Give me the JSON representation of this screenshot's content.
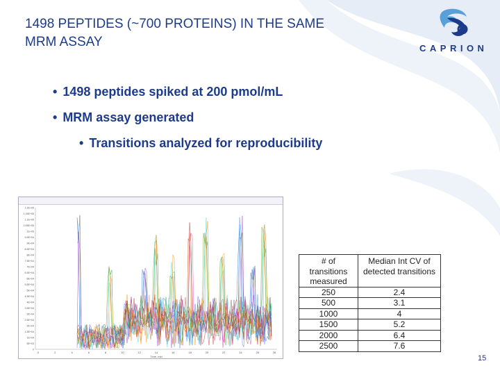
{
  "slide": {
    "title": "1498 PEPTIDES (~700 PROTEINS) IN THE SAME MRM ASSAY",
    "logo_text": "CAPRION",
    "bullets": [
      "1498 peptides spiked at 200 pmol/mL",
      "MRM assay generated"
    ],
    "sub_bullets": [
      "Transitions analyzed for reproducibility"
    ],
    "page_number": "15",
    "colors": {
      "title": "#1c3b8a",
      "swirl": "#dfe8f3"
    }
  },
  "chromatogram": {
    "x_ticks": [
      "0",
      "2",
      "4",
      "6",
      "8",
      "10",
      "12",
      "14",
      "16",
      "18",
      "20",
      "22",
      "24",
      "26",
      "28"
    ],
    "y_ticks": [
      "1.2E+05",
      "1.15E+05",
      "1.1E+05",
      "1.05E+05",
      "1E+05",
      "9.5E+04",
      "9E+04",
      "8.5E+04",
      "8E+04",
      "7.5E+04",
      "7E+04",
      "6.5E+04",
      "6E+04",
      "5.5E+04",
      "5E+04",
      "4.5E+04",
      "4E+04",
      "3.5E+04",
      "3E+04",
      "2.5E+04",
      "2E+04",
      "1.5E+04",
      "1E+04",
      "5E+03",
      "0"
    ],
    "x_label": "Time, min"
  },
  "table": {
    "headers": [
      "# of transitions measured",
      "Median Int CV of detected transitions"
    ],
    "rows": [
      [
        "250",
        "2.4"
      ],
      [
        "500",
        "3.1"
      ],
      [
        "1000",
        "4"
      ],
      [
        "1500",
        "5.2"
      ],
      [
        "2000",
        "6.4"
      ],
      [
        "2500",
        "7.6"
      ]
    ]
  }
}
